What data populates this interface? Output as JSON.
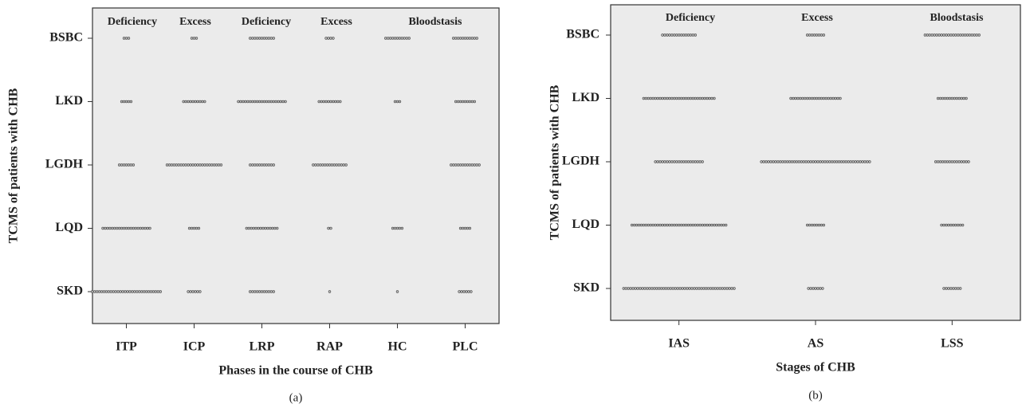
{
  "chart_data": [
    {
      "type": "dot",
      "caption": "(a)",
      "xlabel": "Phases in the course of CHB",
      "ylabel": "TCMS of patients with CHB",
      "categories": [
        "ITP",
        "ICP",
        "LRP",
        "RAP",
        "HC",
        "PLC"
      ],
      "annotations": [
        "Deficiency",
        "Excess",
        "Deficiency",
        "Excess",
        "Bloodstasis"
      ],
      "rows": [
        {
          "name": "BSBC",
          "values": [
            3,
            3,
            11,
            4,
            11,
            11
          ]
        },
        {
          "name": "LKD",
          "values": [
            5,
            10,
            21,
            10,
            3,
            9
          ]
        },
        {
          "name": "LGDH",
          "values": [
            7,
            24,
            11,
            15,
            0,
            13
          ]
        },
        {
          "name": "LQD",
          "values": [
            21,
            5,
            14,
            2,
            5,
            5
          ]
        },
        {
          "name": "SKD",
          "values": [
            30,
            6,
            11,
            1,
            1,
            6
          ]
        }
      ]
    },
    {
      "type": "dot",
      "caption": "(b)",
      "xlabel": "Stages of CHB",
      "ylabel": "TCMS of patients with CHB",
      "categories": [
        "IAS",
        "AS",
        "LSS"
      ],
      "annotations": [
        "Deficiency",
        "Excess",
        "Bloodstasis"
      ],
      "rows": [
        {
          "name": "BSBC",
          "values": [
            15,
            8,
            24
          ]
        },
        {
          "name": "LKD",
          "values": [
            31,
            22,
            13
          ]
        },
        {
          "name": "LGDH",
          "values": [
            21,
            47,
            15
          ]
        },
        {
          "name": "LQD",
          "values": [
            41,
            8,
            10
          ]
        },
        {
          "name": "SKD",
          "values": [
            48,
            7,
            8
          ]
        }
      ]
    }
  ]
}
